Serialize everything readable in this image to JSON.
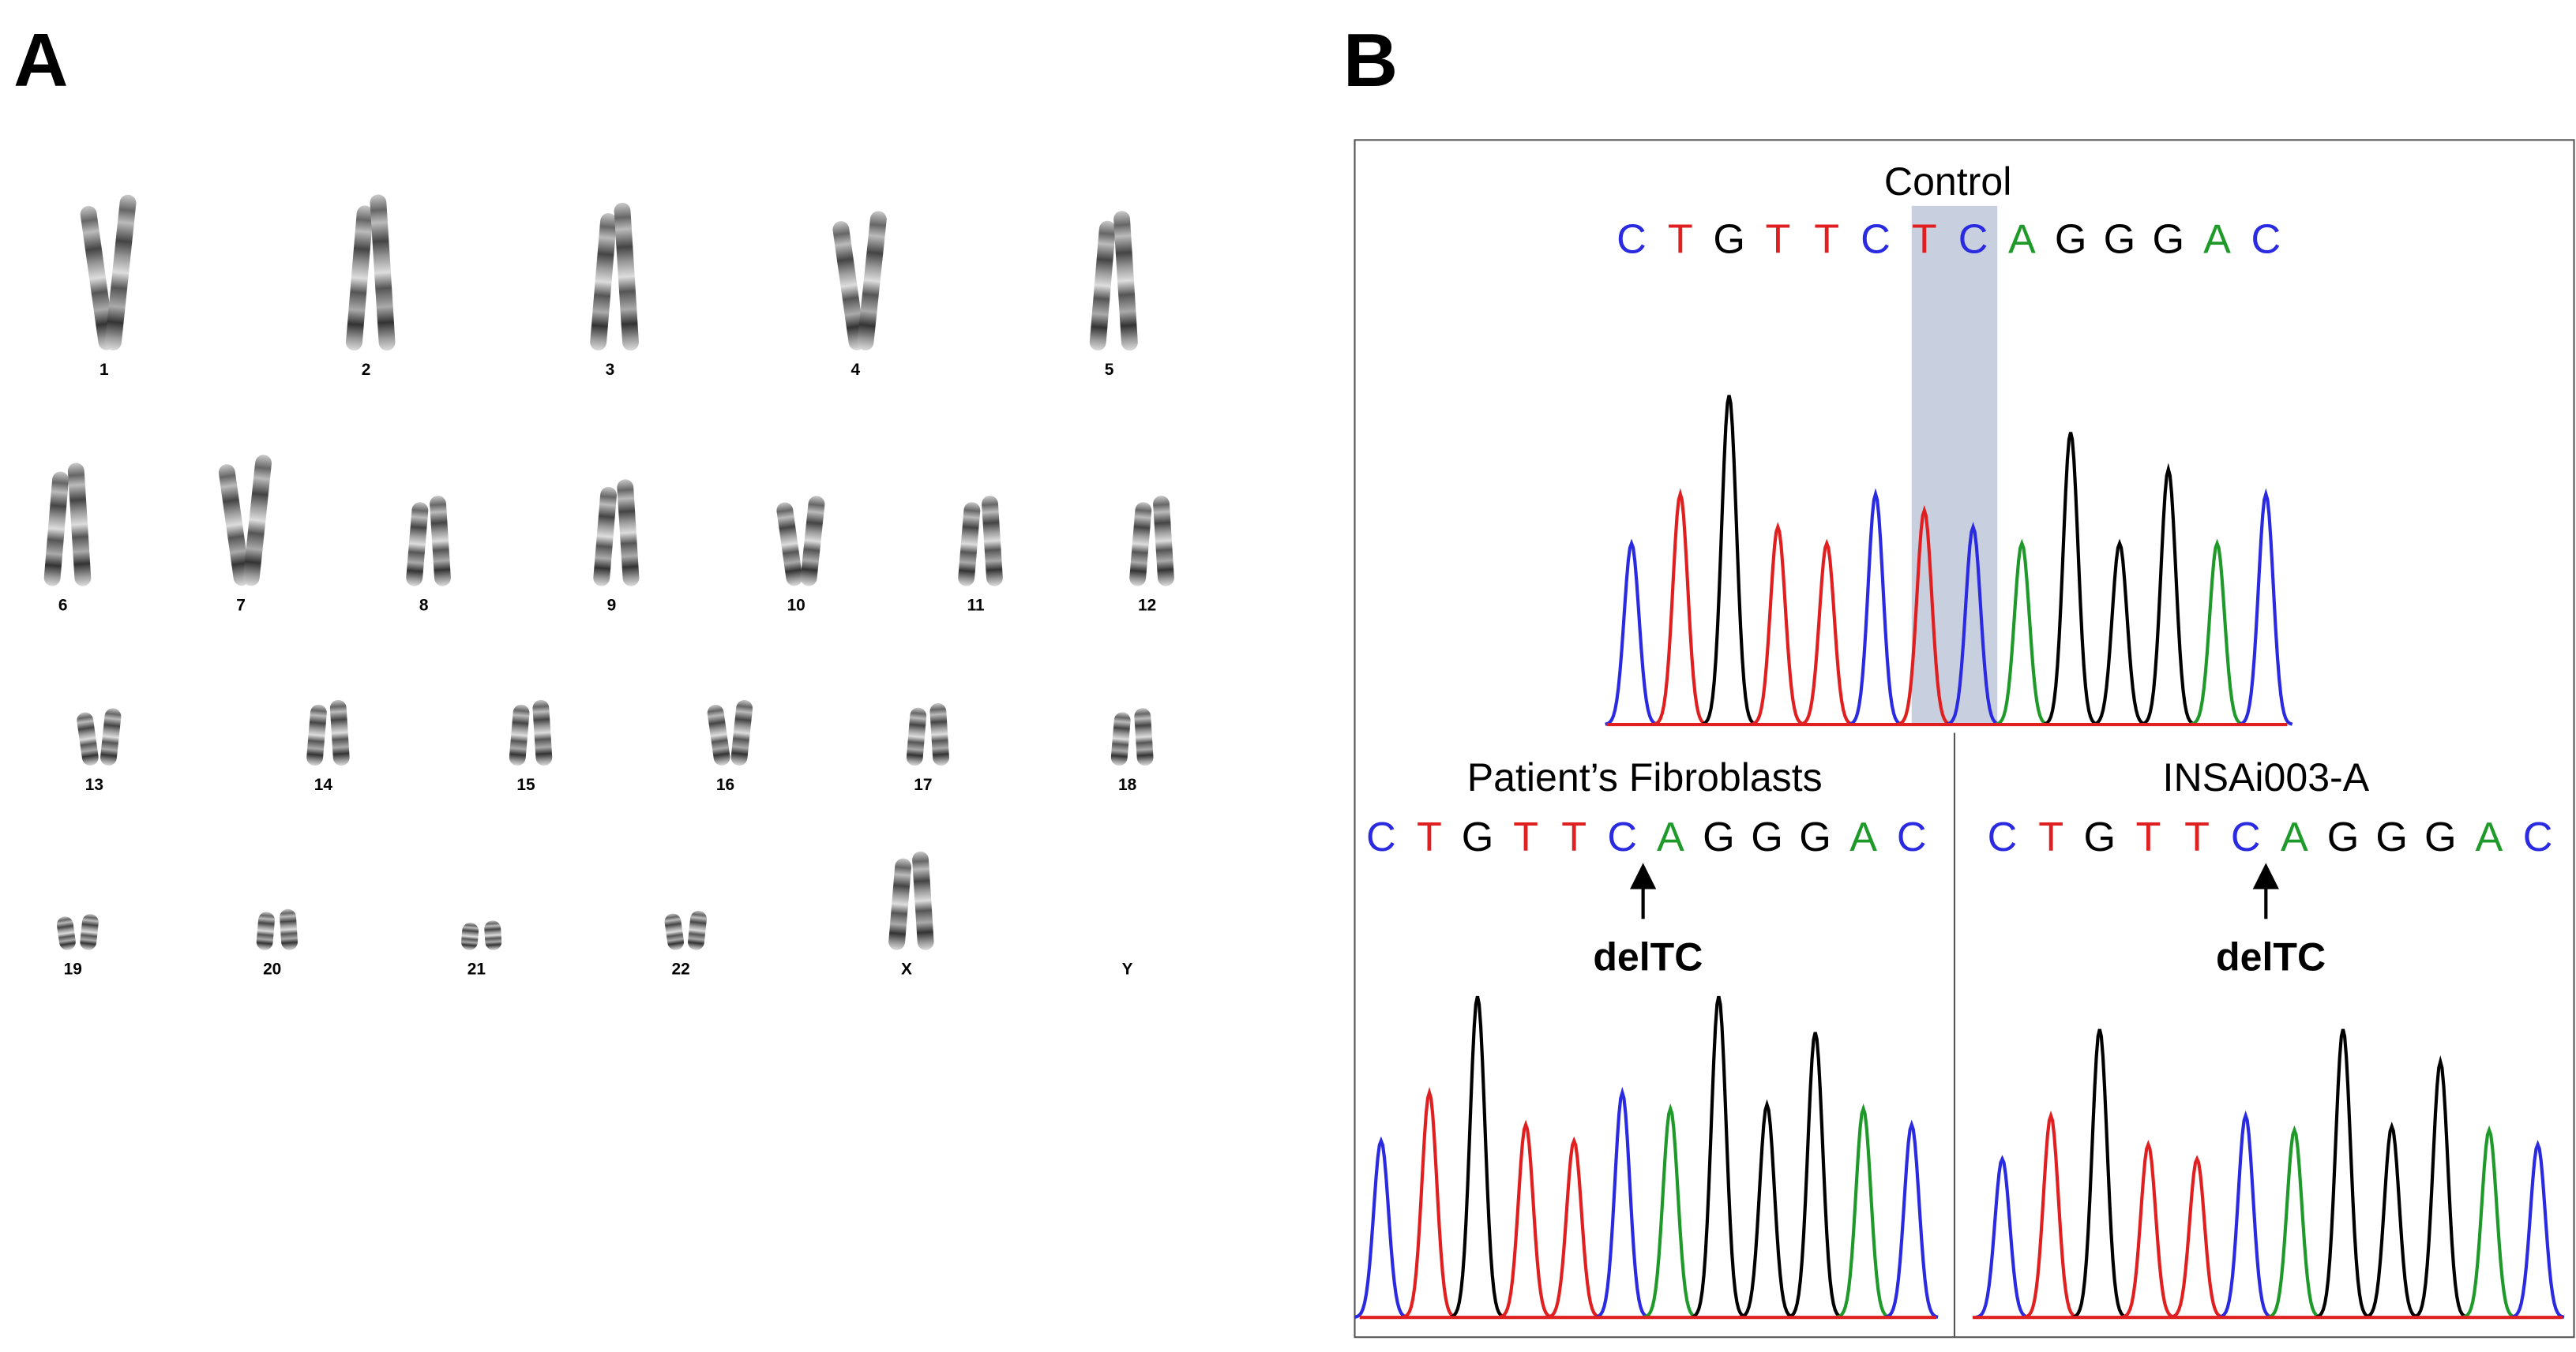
{
  "panels": [
    {
      "label": "A"
    },
    {
      "label": "B"
    }
  ],
  "karyotype": {
    "chromosomes": [
      "1",
      "2",
      "3",
      "4",
      "5",
      "6",
      "7",
      "8",
      "9",
      "10",
      "11",
      "12",
      "13",
      "14",
      "15",
      "16",
      "17",
      "18",
      "19",
      "20",
      "21",
      "22",
      "X",
      "Y"
    ]
  },
  "sequencing": {
    "control": {
      "title": "Control",
      "sequence": [
        "C",
        "T",
        "G",
        "T",
        "T",
        "C",
        "T",
        "C",
        "A",
        "G",
        "G",
        "G",
        "A",
        "C"
      ]
    },
    "patient": {
      "title": "Patient’s Fibroblasts",
      "sequence": [
        "C",
        "T",
        "G",
        "T",
        "T",
        "C",
        "A",
        "G",
        "G",
        "G",
        "A",
        "C"
      ],
      "annotation": "delTC"
    },
    "ipsc": {
      "title": "INSAi003-A",
      "sequence": [
        "C",
        "T",
        "G",
        "T",
        "T",
        "C",
        "A",
        "G",
        "G",
        "G",
        "A",
        "C"
      ],
      "annotation": "delTC"
    }
  }
}
